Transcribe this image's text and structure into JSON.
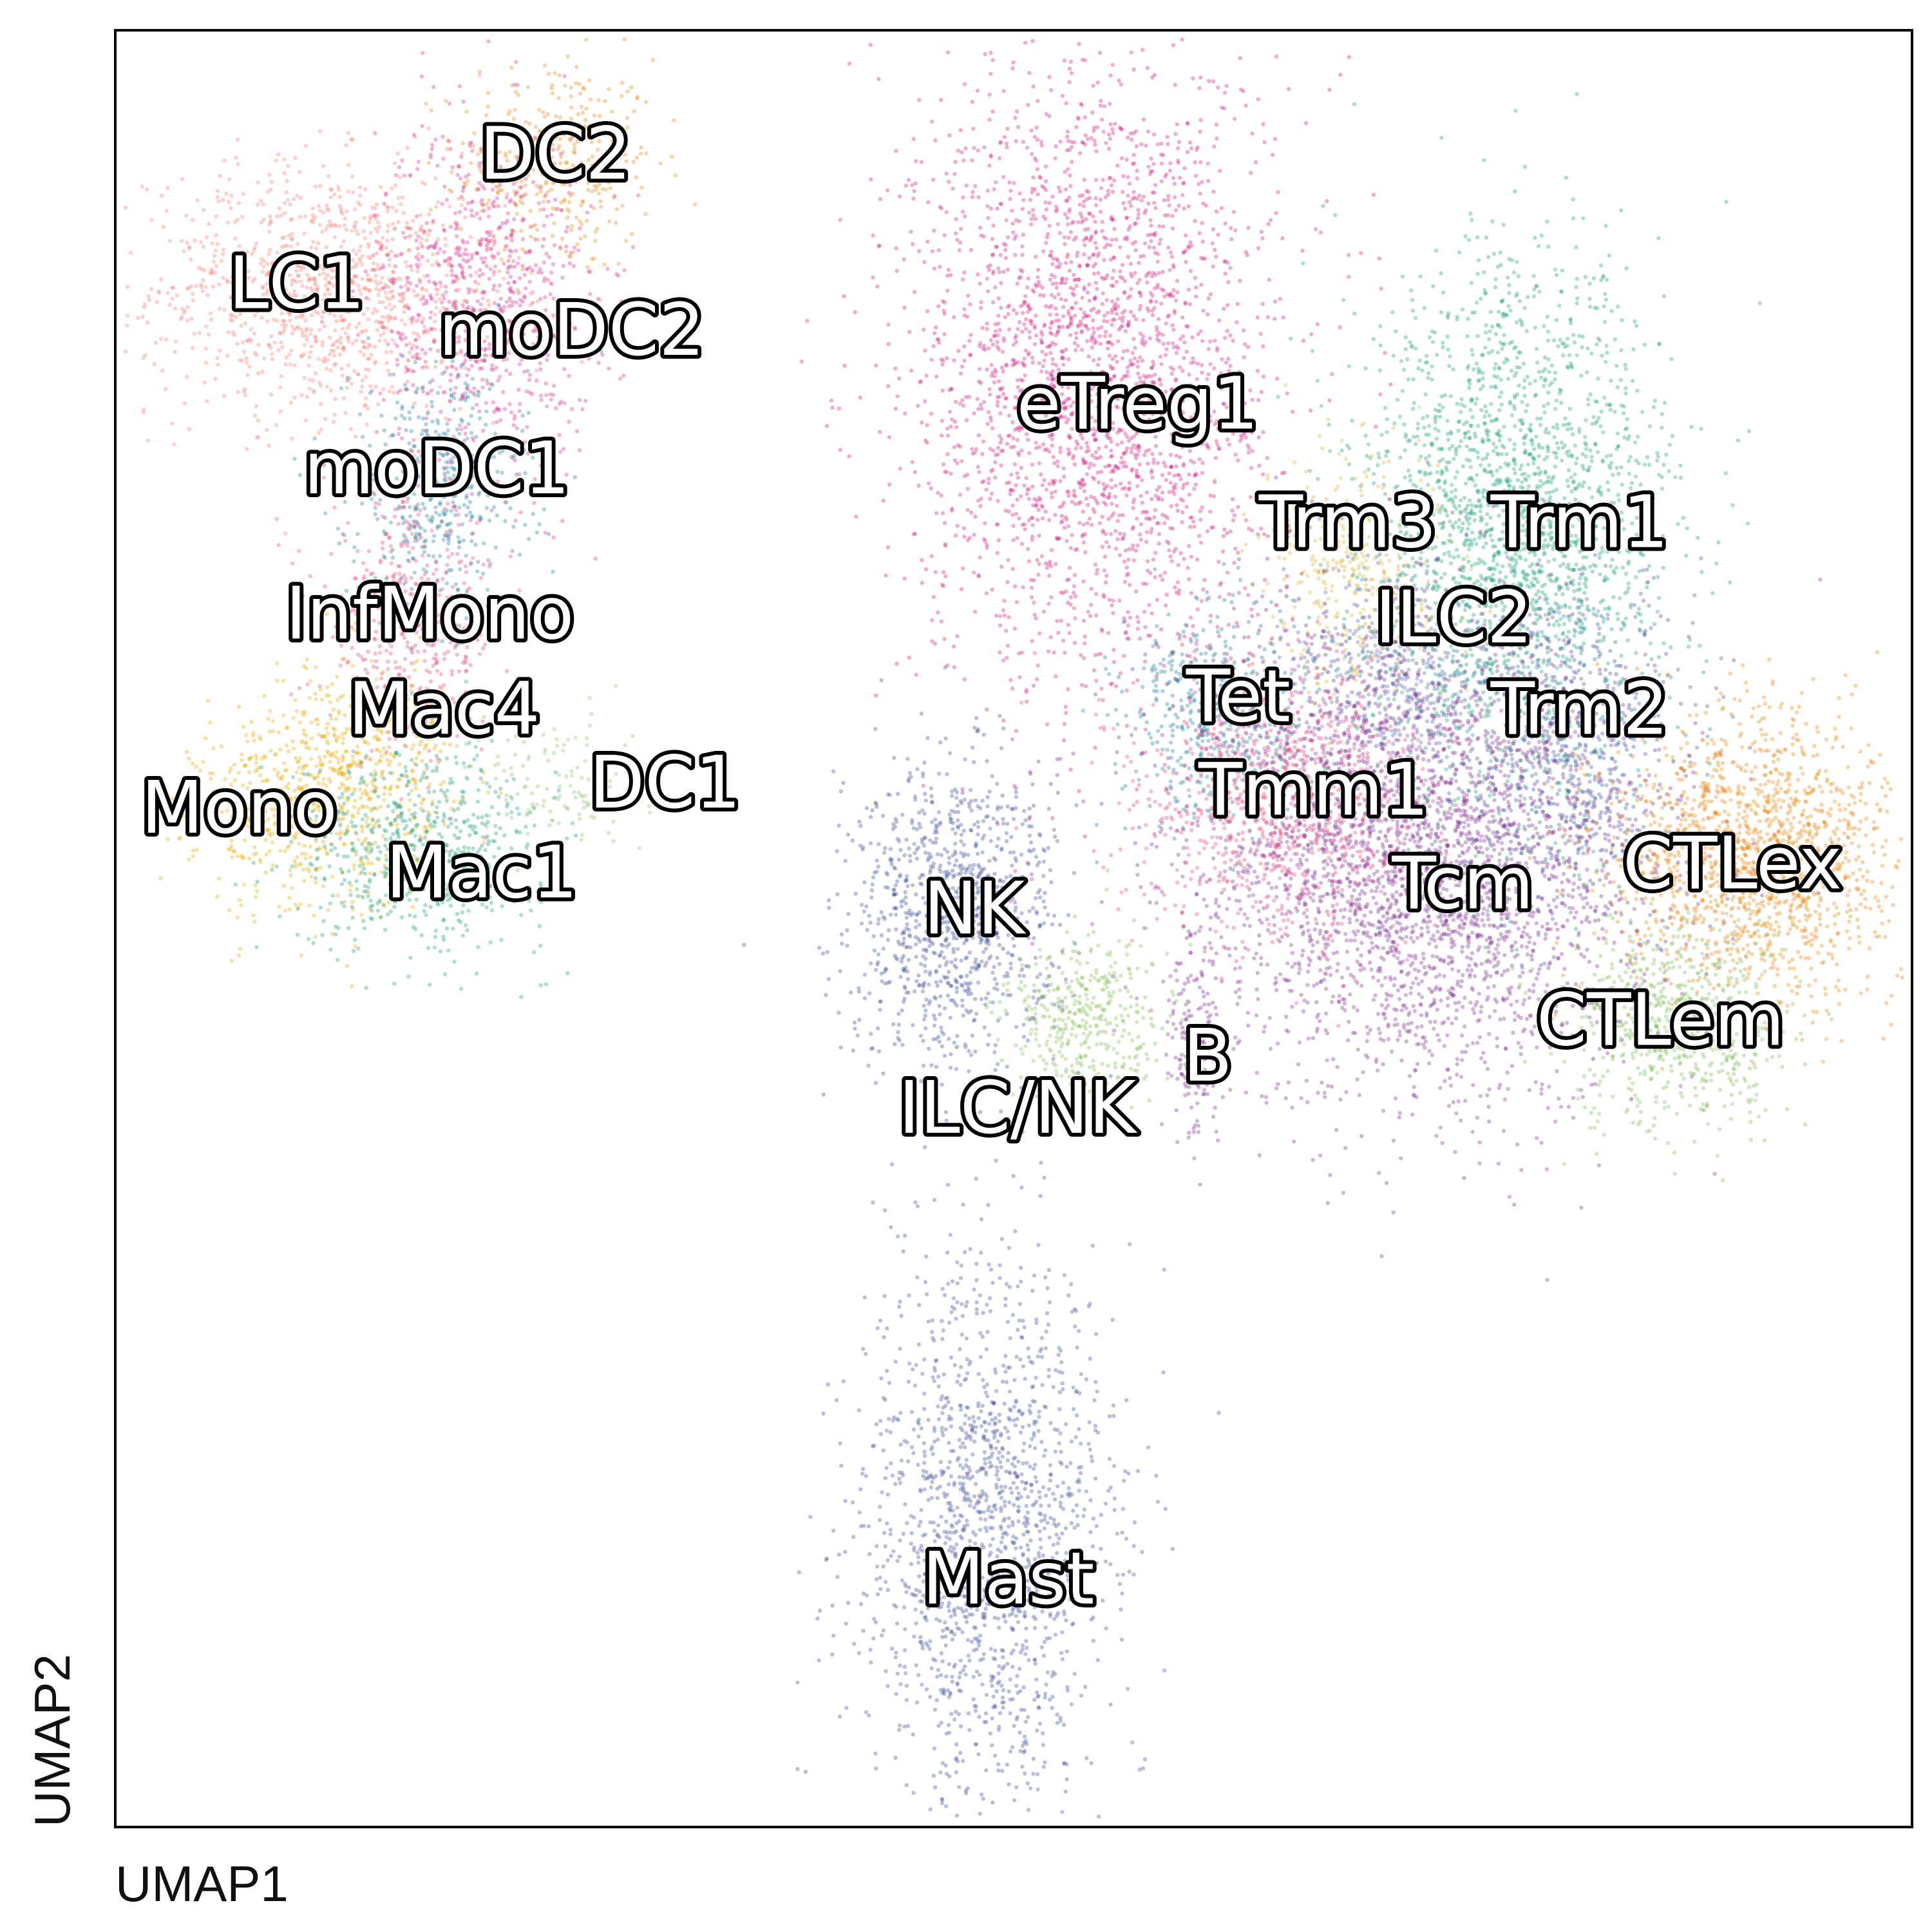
{
  "chart_data": {
    "type": "scatter",
    "title": "",
    "xlabel": "UMAP1",
    "ylabel": "UMAP2",
    "xlim": [
      0,
      1
    ],
    "ylim": [
      0,
      1
    ],
    "ticks": "none",
    "grid": false,
    "legend": "on-data labels",
    "clusters": [
      {
        "name": "DC2",
        "color": "#E6860F",
        "x": 0.245,
        "y": 0.925,
        "sx": 0.028,
        "sy": 0.03,
        "n": 350
      },
      {
        "name": "LC1",
        "color": "#F47F72",
        "x": 0.12,
        "y": 0.855,
        "sx": 0.05,
        "sy": 0.035,
        "n": 1100
      },
      {
        "name": "moDC2",
        "color": "#D62A8E",
        "x": 0.205,
        "y": 0.85,
        "sx": 0.03,
        "sy": 0.05,
        "n": 800
      },
      {
        "name": "moDC1",
        "color": "#1B7E9A",
        "x": 0.18,
        "y": 0.745,
        "sx": 0.025,
        "sy": 0.035,
        "n": 450
      },
      {
        "name": "InfMono",
        "color": "#E7457A",
        "x": 0.165,
        "y": 0.67,
        "sx": 0.025,
        "sy": 0.035,
        "n": 450
      },
      {
        "name": "Mac4",
        "color": "#E6AB02",
        "x": 0.14,
        "y": 0.6,
        "sx": 0.025,
        "sy": 0.025,
        "n": 300
      },
      {
        "name": "Mono",
        "color": "#E6AB02",
        "x": 0.11,
        "y": 0.565,
        "sx": 0.032,
        "sy": 0.03,
        "n": 550
      },
      {
        "name": "Mac1",
        "color": "#1B9E77",
        "x": 0.17,
        "y": 0.545,
        "sx": 0.035,
        "sy": 0.028,
        "n": 600
      },
      {
        "name": "DC1",
        "color": "#8FC26B",
        "x": 0.245,
        "y": 0.58,
        "sx": 0.025,
        "sy": 0.02,
        "n": 130
      },
      {
        "name": "eTreg1",
        "color": "#D1147F",
        "x": 0.545,
        "y": 0.81,
        "sx": 0.05,
        "sy": 0.09,
        "n": 2600
      },
      {
        "name": "Trm1",
        "color": "#1B9E77",
        "x": 0.78,
        "y": 0.72,
        "sx": 0.042,
        "sy": 0.075,
        "n": 2200
      },
      {
        "name": "Trm3",
        "color": "#D6B43A",
        "x": 0.69,
        "y": 0.7,
        "sx": 0.025,
        "sy": 0.035,
        "n": 350
      },
      {
        "name": "ILC2",
        "color": "#5A6BB0",
        "x": 0.71,
        "y": 0.64,
        "sx": 0.03,
        "sy": 0.03,
        "n": 450
      },
      {
        "name": "Trm2",
        "color": "#3B5AA0",
        "x": 0.81,
        "y": 0.6,
        "sx": 0.03,
        "sy": 0.045,
        "n": 650
      },
      {
        "name": "Tet",
        "color": "#1B7E9A",
        "x": 0.61,
        "y": 0.62,
        "sx": 0.025,
        "sy": 0.03,
        "n": 450
      },
      {
        "name": "Tmm1",
        "color": "#E7457A",
        "x": 0.65,
        "y": 0.57,
        "sx": 0.04,
        "sy": 0.04,
        "n": 950
      },
      {
        "name": "Tcm",
        "color": "#7A2F8F",
        "x": 0.73,
        "y": 0.54,
        "sx": 0.065,
        "sy": 0.065,
        "n": 3300
      },
      {
        "name": "CTLex",
        "color": "#E6860F",
        "x": 0.91,
        "y": 0.54,
        "sx": 0.04,
        "sy": 0.04,
        "n": 1500
      },
      {
        "name": "CTLem",
        "color": "#7FB95A",
        "x": 0.87,
        "y": 0.445,
        "sx": 0.03,
        "sy": 0.03,
        "n": 650
      },
      {
        "name": "NK",
        "color": "#3D4B94",
        "x": 0.465,
        "y": 0.505,
        "sx": 0.028,
        "sy": 0.045,
        "n": 1000
      },
      {
        "name": "ILC/NK",
        "color": "#86BE56",
        "x": 0.54,
        "y": 0.45,
        "sx": 0.022,
        "sy": 0.022,
        "n": 400
      },
      {
        "name": "B",
        "color": "#7A2F8F",
        "x": 0.6,
        "y": 0.44,
        "sx": 0.008,
        "sy": 0.035,
        "n": 150
      },
      {
        "name": "Mast",
        "color": "#3D4B94",
        "x": 0.485,
        "y": 0.165,
        "sx": 0.035,
        "sy": 0.075,
        "n": 1600
      }
    ],
    "labels": [
      {
        "text": "DC2",
        "x": 0.245,
        "y": 0.931
      },
      {
        "text": "LC1",
        "x": 0.101,
        "y": 0.859
      },
      {
        "text": "moDC2",
        "x": 0.254,
        "y": 0.833
      },
      {
        "text": "moDC1",
        "x": 0.179,
        "y": 0.756
      },
      {
        "text": "InfMono",
        "x": 0.175,
        "y": 0.675
      },
      {
        "text": "Mac4",
        "x": 0.183,
        "y": 0.622
      },
      {
        "text": "Mono",
        "x": 0.069,
        "y": 0.567
      },
      {
        "text": "DC1",
        "x": 0.306,
        "y": 0.581
      },
      {
        "text": "Mac1",
        "x": 0.204,
        "y": 0.531
      },
      {
        "text": "eTreg1",
        "x": 0.569,
        "y": 0.792
      },
      {
        "text": "Trm3",
        "x": 0.686,
        "y": 0.726
      },
      {
        "text": "Trm1",
        "x": 0.815,
        "y": 0.726
      },
      {
        "text": "ILC2",
        "x": 0.745,
        "y": 0.673
      },
      {
        "text": "Tet",
        "x": 0.625,
        "y": 0.629
      },
      {
        "text": "Trm2",
        "x": 0.815,
        "y": 0.622
      },
      {
        "text": "Tmm1",
        "x": 0.667,
        "y": 0.577
      },
      {
        "text": "CTLex",
        "x": 0.9,
        "y": 0.536
      },
      {
        "text": "Tcm",
        "x": 0.75,
        "y": 0.525
      },
      {
        "text": "NK",
        "x": 0.478,
        "y": 0.511
      },
      {
        "text": "CTLem",
        "x": 0.86,
        "y": 0.449
      },
      {
        "text": "B",
        "x": 0.608,
        "y": 0.429
      },
      {
        "text": "ILC/NK",
        "x": 0.502,
        "y": 0.4
      },
      {
        "text": "Mast",
        "x": 0.497,
        "y": 0.138
      }
    ]
  }
}
